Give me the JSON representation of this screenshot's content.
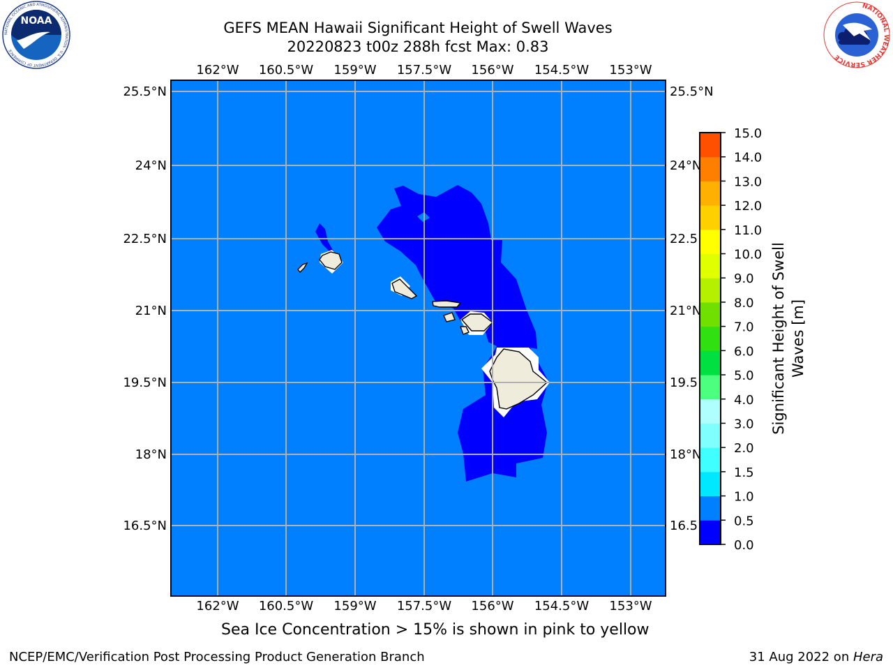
{
  "header": {
    "title_line1": "GEFS MEAN Hawaii Significant Height of Swell Waves",
    "title_line2": "20220823 t00z 288h fcst   Max: 0.83"
  },
  "map": {
    "lon_ticks": [
      "162°W",
      "160.5°W",
      "159°W",
      "157.5°W",
      "156°W",
      "154.5°W",
      "153°W"
    ],
    "lat_ticks": [
      "25.5°N",
      "24°N",
      "22.5°N",
      "21°N",
      "19.5°N",
      "18°N",
      "16.5°N"
    ],
    "ocean_color": "#0080ff",
    "land_color": "#efecdc",
    "field_description": "Swell height mostly 0.5–1.0 m; 0.0–0.5 m in lee of islands"
  },
  "colorbar": {
    "label_line1": "Significant Height of Swell",
    "label_line2": "Waves [m]",
    "levels": [
      "0.0",
      "0.5",
      "1.0",
      "1.5",
      "2.0",
      "3.0",
      "4.0",
      "5.0",
      "6.0",
      "7.0",
      "8.0",
      "9.0",
      "10.0",
      "11.0",
      "12.0",
      "13.0",
      "14.0",
      "15.0"
    ],
    "colors": [
      "#0000ff",
      "#0080ff",
      "#00e8ff",
      "#40ffff",
      "#80ffff",
      "#b0ffff",
      "#4cff7f",
      "#00e040",
      "#30e010",
      "#70e000",
      "#b4f000",
      "#e0ff00",
      "#ffff00",
      "#ffd000",
      "#ffb000",
      "#ff8000",
      "#ff5000",
      "#ff2000",
      "#ff0000"
    ]
  },
  "note": "Sea Ice Concentration > 15% is shown in pink to yellow",
  "footer": {
    "left": "NCEP/EMC/Verification Post Processing Product Generation Branch",
    "right_date": "31 Aug 2022 on ",
    "right_host": "Hera"
  },
  "logos": {
    "noaa": "NOAA",
    "noaa_ring": "NATIONAL OCEANIC AND ATMOSPHERIC ADMINISTRATION · U.S. DEPARTMENT OF COMMERCE",
    "nws_ring": "NATIONAL WEATHER SERVICE"
  }
}
